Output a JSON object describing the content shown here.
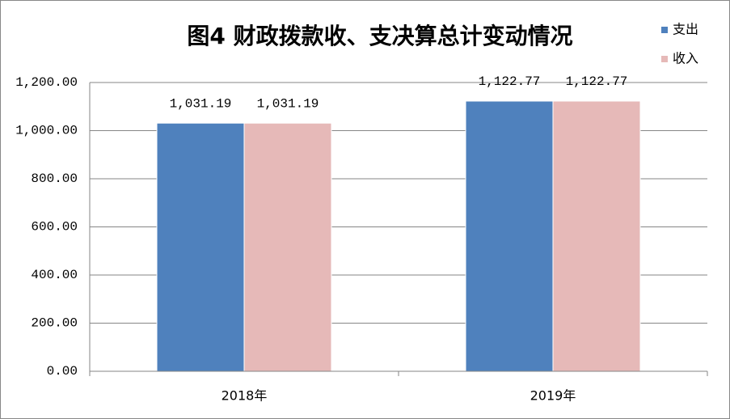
{
  "chart_data": {
    "type": "bar",
    "title": "图4 财政拨款收、支决算总计变动情况",
    "categories": [
      "2018年",
      "2019年"
    ],
    "series": [
      {
        "name": "支出",
        "color": "#4f81bd",
        "values": [
          1031.19,
          1122.77
        ],
        "value_labels": [
          "1,031.19",
          "1,122.77"
        ]
      },
      {
        "name": "收入",
        "color": "#e6b9b8",
        "values": [
          1031.19,
          1122.77
        ],
        "value_labels": [
          "1,031.19",
          "1,122.77"
        ]
      }
    ],
    "ylim": [
      0,
      1200
    ],
    "yticks": [
      {
        "value": 0,
        "label": "0.00"
      },
      {
        "value": 200,
        "label": "200.00"
      },
      {
        "value": 400,
        "label": "400.00"
      },
      {
        "value": 600,
        "label": "600.00"
      },
      {
        "value": 800,
        "label": "800.00"
      },
      {
        "value": 1000,
        "label": "1,000.00"
      },
      {
        "value": 1200,
        "label": "1,200.00"
      }
    ],
    "grid": true,
    "legend": "top-right"
  }
}
